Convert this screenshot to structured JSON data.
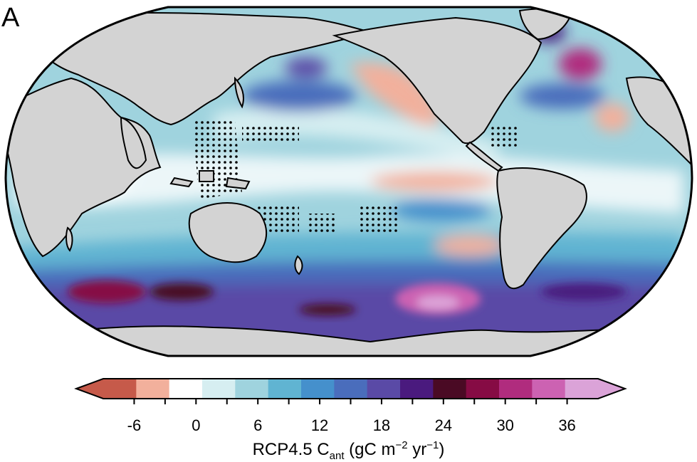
{
  "panel_label": "A",
  "colorbar": {
    "title_main": "RCP4.5 C",
    "title_sub": "ant",
    "title_units_a": " (gC m",
    "title_sup_a": "−2",
    "title_units_b": " yr",
    "title_sup_b": "−1",
    "title_units_c": ")",
    "tick_values": [
      "-6",
      "0",
      "6",
      "12",
      "18",
      "24",
      "30",
      "36"
    ],
    "tick_numbers": [
      -6,
      0,
      6,
      12,
      18,
      24,
      30,
      36
    ],
    "min": -9,
    "max": 39,
    "step": 3,
    "extend": "both",
    "colors": [
      "#c65a4a",
      "#f2b09c",
      "#ffffff",
      "#d6eef1",
      "#9fd3de",
      "#60b4d2",
      "#4590cc",
      "#4a6dbc",
      "#5a4aa6",
      "#4a1a7e",
      "#4a0a24",
      "#860b44",
      "#b02c7e",
      "#cc62b2",
      "#dba3d8"
    ]
  },
  "map": {
    "projection": "Robinson",
    "land_color": "#d3d3d3",
    "ocean_base_color": "#9fd3de",
    "stippling": "dots mark regions of low significance"
  }
}
